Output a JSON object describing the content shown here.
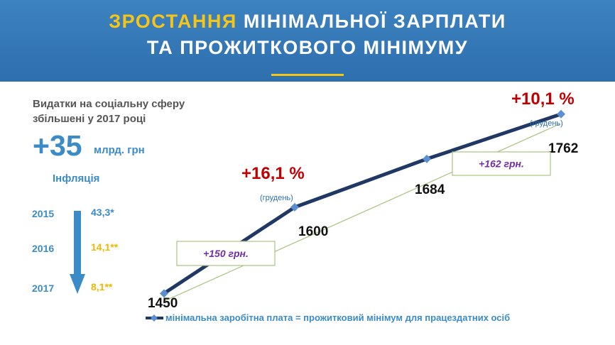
{
  "header": {
    "title_accent": "ЗРОСТАННЯ",
    "title_line1_rest": " МІНІМАЛЬНОЇ ЗАРПЛАТИ",
    "title_line2": "ТА ПРОЖИТКОВОГО МІНІМУМУ"
  },
  "spending": {
    "text_line1": "Видатки на соціальну сферу",
    "text_line2": "збільшені у 2017 році",
    "amount": "+35",
    "unit": "млрд. грн"
  },
  "inflation": {
    "title": "Інфляція",
    "rows": [
      {
        "year": "2015",
        "value": "43,3*",
        "color": "#3b8bc8"
      },
      {
        "year": "2016",
        "value": "14,1**",
        "color": "#f0b800"
      },
      {
        "year": "2017",
        "value": "8,1**",
        "color": "#f0b800"
      }
    ]
  },
  "colors": {
    "header_blue": "#3478b8",
    "accent_yellow": "#f5c518",
    "line_navy": "#1f3864",
    "marker_blue": "#5b8fd0",
    "percent_red": "#c00000",
    "increase_purple": "#7030a0",
    "text_blue": "#3b8bc8",
    "arrow_blue": "#3b8bc8",
    "trend_green": "#a9c47f"
  },
  "chart_data": {
    "type": "line",
    "series": [
      {
        "name": "мінімальна заробітна плата = прожитковий мінімум для працездатних осіб",
        "values": [
          1450,
          1600,
          1684,
          1762
        ]
      }
    ],
    "data_labels": [
      "1450",
      "1600",
      "1684",
      "1762"
    ],
    "annotations": [
      {
        "percent": "+16,1 %",
        "note": "(грудень)",
        "point": 1
      },
      {
        "percent": "+10,1 %",
        "note": "(грудень)",
        "point": 3
      }
    ],
    "increase_boxes": [
      {
        "text": "+150 грн.",
        "from": 0,
        "to": 1
      },
      {
        "text": "+162 грн.",
        "from": 1,
        "to": 3
      }
    ],
    "ylim": [
      1380,
      1800
    ]
  }
}
